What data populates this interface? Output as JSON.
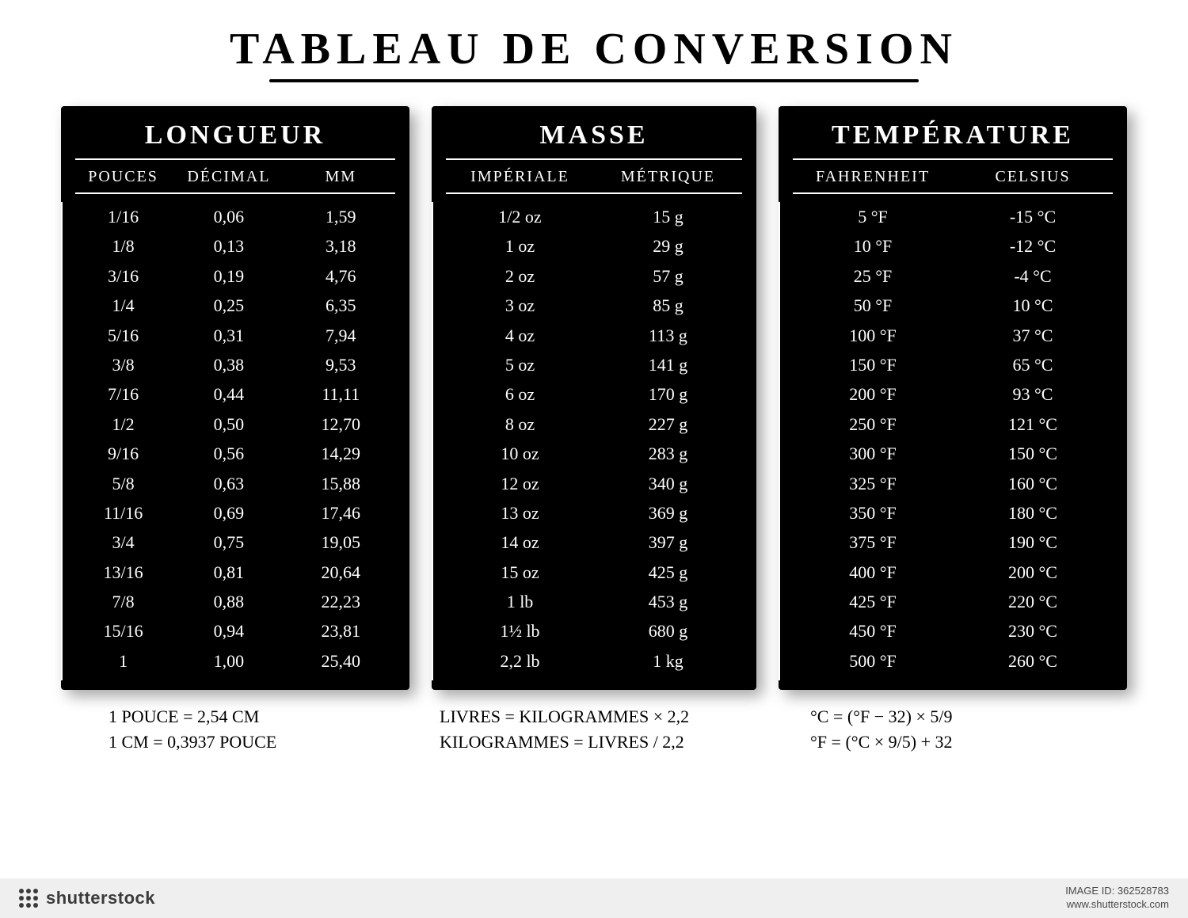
{
  "title": "TABLEAU DE CONVERSION",
  "colors": {
    "panel_bg": "#000000",
    "panel_fg": "#ffffff",
    "page_bg": "#ffffff",
    "footer_bg": "#efefef",
    "footer_fg": "#4a4a4a"
  },
  "length": {
    "title": "LONGUEUR",
    "columns": [
      "POUCES",
      "DÉCIMAL",
      "MM"
    ],
    "rows": [
      [
        "1/16",
        "0,06",
        "1,59"
      ],
      [
        "1/8",
        "0,13",
        "3,18"
      ],
      [
        "3/16",
        "0,19",
        "4,76"
      ],
      [
        "1/4",
        "0,25",
        "6,35"
      ],
      [
        "5/16",
        "0,31",
        "7,94"
      ],
      [
        "3/8",
        "0,38",
        "9,53"
      ],
      [
        "7/16",
        "0,44",
        "11,11"
      ],
      [
        "1/2",
        "0,50",
        "12,70"
      ],
      [
        "9/16",
        "0,56",
        "14,29"
      ],
      [
        "5/8",
        "0,63",
        "15,88"
      ],
      [
        "11/16",
        "0,69",
        "17,46"
      ],
      [
        "3/4",
        "0,75",
        "19,05"
      ],
      [
        "13/16",
        "0,81",
        "20,64"
      ],
      [
        "7/8",
        "0,88",
        "22,23"
      ],
      [
        "15/16",
        "0,94",
        "23,81"
      ],
      [
        "1",
        "1,00",
        "25,40"
      ]
    ],
    "footnotes": [
      "1 POUCE = 2,54 CM",
      "1 CM = 0,3937 POUCE"
    ]
  },
  "mass": {
    "title": "MASSE",
    "columns": [
      "IMPÉRIALE",
      "MÉTRIQUE"
    ],
    "rows": [
      [
        "1/2 oz",
        "15 g"
      ],
      [
        "1 oz",
        "29 g"
      ],
      [
        "2 oz",
        "57 g"
      ],
      [
        "3 oz",
        "85 g"
      ],
      [
        "4 oz",
        "113 g"
      ],
      [
        "5 oz",
        "141 g"
      ],
      [
        "6 oz",
        "170 g"
      ],
      [
        "8 oz",
        "227 g"
      ],
      [
        "10 oz",
        "283 g"
      ],
      [
        "12 oz",
        "340 g"
      ],
      [
        "13 oz",
        "369 g"
      ],
      [
        "14 oz",
        "397 g"
      ],
      [
        "15 oz",
        "425 g"
      ],
      [
        "1 lb",
        "453 g"
      ],
      [
        "1½ lb",
        "680 g"
      ],
      [
        "2,2 lb",
        "1 kg"
      ]
    ],
    "footnotes": [
      "LIVRES = KILOGRAMMES × 2,2",
      "KILOGRAMMES = LIVRES / 2,2"
    ]
  },
  "temperature": {
    "title": "TEMPÉRATURE",
    "columns": [
      "FAHRENHEIT",
      "CELSIUS"
    ],
    "rows": [
      [
        "5 °F",
        "-15 °C"
      ],
      [
        "10 °F",
        "-12 °C"
      ],
      [
        "25 °F",
        "-4 °C"
      ],
      [
        "50 °F",
        "10 °C"
      ],
      [
        "100 °F",
        "37 °C"
      ],
      [
        "150 °F",
        "65 °C"
      ],
      [
        "200 °F",
        "93 °C"
      ],
      [
        "250 °F",
        "121 °C"
      ],
      [
        "300 °F",
        "150 °C"
      ],
      [
        "325 °F",
        "160 °C"
      ],
      [
        "350 °F",
        "180 °C"
      ],
      [
        "375 °F",
        "190 °C"
      ],
      [
        "400 °F",
        "200 °C"
      ],
      [
        "425 °F",
        "220 °C"
      ],
      [
        "450 °F",
        "230 °C"
      ],
      [
        "500 °F",
        "260 °C"
      ]
    ],
    "footnotes": [
      "°C = (°F − 32) × 5/9",
      "°F = (°C × 9/5) + 32"
    ]
  },
  "footer": {
    "brand": "shutterstock",
    "image_id_label": "IMAGE ID: 362528783",
    "site": "www.shutterstock.com"
  }
}
